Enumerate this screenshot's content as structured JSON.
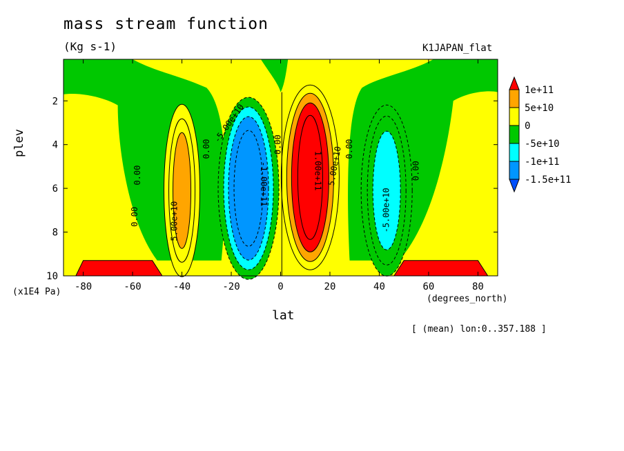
{
  "chart_data": {
    "type": "contour",
    "title": "mass stream function",
    "units": "(Kg s-1)",
    "run_label": "K1JAPAN_flat",
    "xlabel": "lat",
    "x_units": "(degrees_north)",
    "ylabel": "plev",
    "y_units": "(x1E4 Pa)",
    "note": "[ (mean) lon:0..357.188 ]",
    "xlim": [
      -88,
      88
    ],
    "ylim": [
      10,
      0.1
    ],
    "x_ticks": [
      -80,
      -60,
      -40,
      -20,
      0,
      20,
      40,
      60,
      80
    ],
    "x_tick_labels": [
      "-80",
      "-60",
      "-40",
      "-20",
      "0",
      "20",
      "40",
      "60",
      "80"
    ],
    "y_ticks": [
      2,
      4,
      6,
      8,
      10
    ],
    "y_tick_labels": [
      "2",
      "4",
      "6",
      "8",
      "10"
    ],
    "legend": {
      "placement": "right",
      "levels": [
        "1e+11",
        "5e+10",
        "0",
        "-5e+10",
        "-1e+11",
        "-1.5e+11"
      ],
      "colors": [
        "#ff0000",
        "#ffa500",
        "#ffff00",
        "#00c800",
        "#00ffff",
        "#0096ff",
        "#0050ff"
      ]
    },
    "cells": [
      {
        "name": "southern polar cell",
        "sign": "positive",
        "center_lat": -40,
        "center_plev": 6,
        "peak": 50000000000.0
      },
      {
        "name": "southern hadley cell",
        "sign": "negative",
        "center_lat": -13,
        "center_plev": 6,
        "peak": -100000000000.0
      },
      {
        "name": "northern hadley cell",
        "sign": "positive",
        "center_lat": 12,
        "center_plev": 5,
        "peak": 100000000000.0
      },
      {
        "name": "northern ferrel cell",
        "sign": "negative",
        "center_lat": 42,
        "center_plev": 6,
        "peak": -50000000000.0
      }
    ],
    "contour_labels": [
      "5.00e+10",
      "-5.00e+10",
      "-1.00e+11",
      "5.00e+10",
      "1.00e+11",
      "-5.00e+10",
      "0.00",
      "0.00",
      "0.00",
      "0.00",
      "0.00",
      "0.00"
    ],
    "colors": {
      "background_fill": "#00c800",
      "positive_outer": "#ffff00"
    }
  }
}
